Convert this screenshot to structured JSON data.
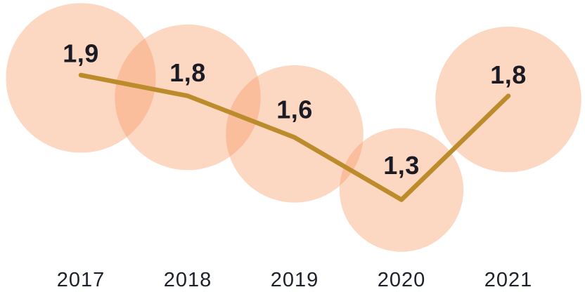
{
  "chart_data": {
    "type": "line",
    "subtype": "bubble-line",
    "categories": [
      "2017",
      "2018",
      "2019",
      "2020",
      "2021"
    ],
    "values": [
      1.9,
      1.8,
      1.6,
      1.3,
      1.8
    ],
    "value_labels": [
      "1,9",
      "1,8",
      "1,6",
      "1,3",
      "1,8"
    ],
    "decimal_separator": ",",
    "xlabel": "",
    "ylabel": "",
    "grid": false,
    "legend": false,
    "axis_lines": false,
    "bubble_radius_scale": "sqrt",
    "bubble_opacity": 0.38,
    "colors": {
      "bubble": "#f6965e",
      "bubble_single_appearance": "#fcd7c2",
      "bubble_overlap_appearance": "#f9be9c",
      "line": "#bc8b2c",
      "value_text": "#1b1b26",
      "year_text": "#1d212c",
      "background": "#ffffff"
    }
  }
}
